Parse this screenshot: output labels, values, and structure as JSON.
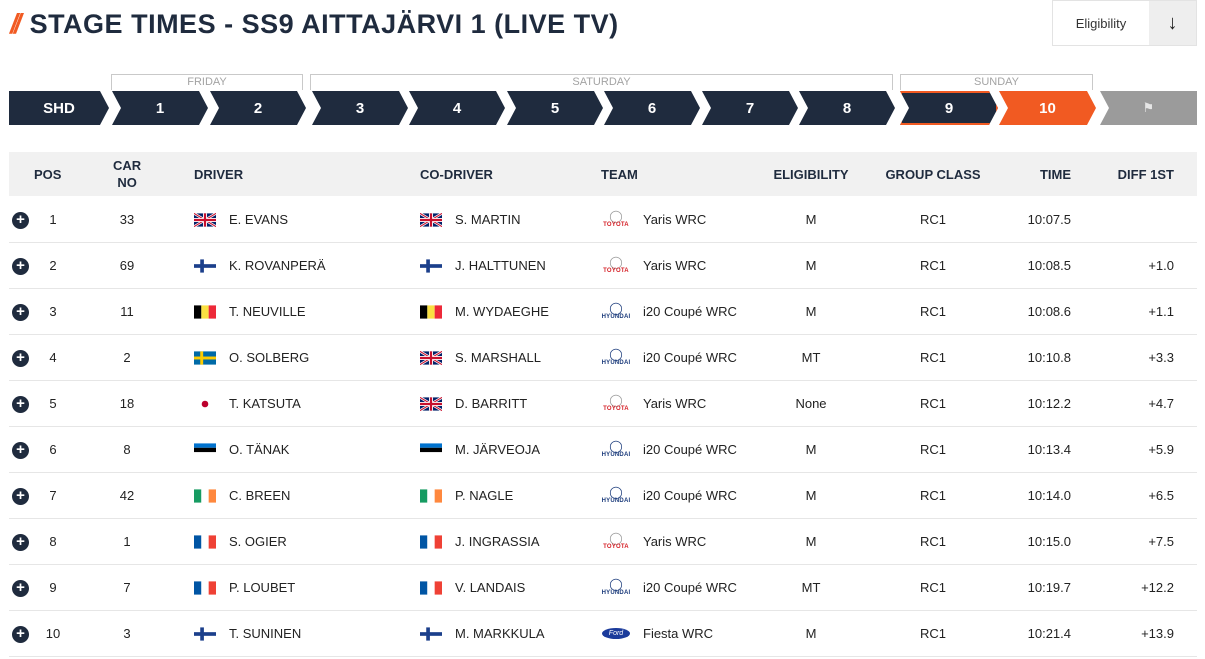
{
  "page": {
    "title": "STAGE TIMES - SS9 AITTAJÄRVI 1 (LIVE TV)",
    "eligibility_label": "Eligibility",
    "download_icon": "arrow-down-icon"
  },
  "days": [
    {
      "label": "FRIDAY"
    },
    {
      "label": "SATURDAY"
    },
    {
      "label": "SUNDAY"
    }
  ],
  "stages": [
    {
      "label": "SHD",
      "state": "done"
    },
    {
      "label": "1",
      "state": "done"
    },
    {
      "label": "2",
      "state": "done"
    },
    {
      "label": "3",
      "state": "done"
    },
    {
      "label": "4",
      "state": "done"
    },
    {
      "label": "5",
      "state": "done"
    },
    {
      "label": "6",
      "state": "done"
    },
    {
      "label": "7",
      "state": "done"
    },
    {
      "label": "8",
      "state": "done"
    },
    {
      "label": "9",
      "state": "selected"
    },
    {
      "label": "10",
      "state": "live"
    },
    {
      "label": "",
      "state": "finish",
      "icon": "chequered-flag-icon"
    }
  ],
  "colors": {
    "navy": "#1f2b3e",
    "orange": "#f15a22",
    "grey": "#9b9b9b"
  },
  "table": {
    "headers": {
      "pos": "POS",
      "car_no": "CAR NO",
      "driver": "DRIVER",
      "co_driver": "CO-DRIVER",
      "team": "TEAM",
      "eligibility": "ELIGIBILITY",
      "group_class": "GROUP CLASS",
      "time": "TIME",
      "diff": "DIFF 1ST"
    },
    "rows": [
      {
        "pos": "1",
        "car": "33",
        "driver": "E. EVANS",
        "driver_flag": "gb",
        "co": "S. MARTIN",
        "co_flag": "gb",
        "brand": "toyota",
        "team": "Yaris WRC",
        "elig": "M",
        "class": "RC1",
        "time": "10:07.5",
        "diff": ""
      },
      {
        "pos": "2",
        "car": "69",
        "driver": "K. ROVANPERÄ",
        "driver_flag": "fi",
        "co": "J. HALTTUNEN",
        "co_flag": "fi",
        "brand": "toyota",
        "team": "Yaris WRC",
        "elig": "M",
        "class": "RC1",
        "time": "10:08.5",
        "diff": "+1.0"
      },
      {
        "pos": "3",
        "car": "11",
        "driver": "T. NEUVILLE",
        "driver_flag": "be",
        "co": "M. WYDAEGHE",
        "co_flag": "be",
        "brand": "hyundai",
        "team": "i20 Coupé WRC",
        "elig": "M",
        "class": "RC1",
        "time": "10:08.6",
        "diff": "+1.1"
      },
      {
        "pos": "4",
        "car": "2",
        "driver": "O. SOLBERG",
        "driver_flag": "se",
        "co": "S. MARSHALL",
        "co_flag": "gb",
        "brand": "hyundai",
        "team": "i20 Coupé WRC",
        "elig": "MT",
        "class": "RC1",
        "time": "10:10.8",
        "diff": "+3.3"
      },
      {
        "pos": "5",
        "car": "18",
        "driver": "T. KATSUTA",
        "driver_flag": "jp",
        "co": "D. BARRITT",
        "co_flag": "gb",
        "brand": "toyota",
        "team": "Yaris WRC",
        "elig": "None",
        "class": "RC1",
        "time": "10:12.2",
        "diff": "+4.7"
      },
      {
        "pos": "6",
        "car": "8",
        "driver": "O. TÄNAK",
        "driver_flag": "ee",
        "co": "M. JÄRVEOJA",
        "co_flag": "ee",
        "brand": "hyundai",
        "team": "i20 Coupé WRC",
        "elig": "M",
        "class": "RC1",
        "time": "10:13.4",
        "diff": "+5.9"
      },
      {
        "pos": "7",
        "car": "42",
        "driver": "C. BREEN",
        "driver_flag": "ie",
        "co": "P. NAGLE",
        "co_flag": "ie",
        "brand": "hyundai",
        "team": "i20 Coupé WRC",
        "elig": "M",
        "class": "RC1",
        "time": "10:14.0",
        "diff": "+6.5"
      },
      {
        "pos": "8",
        "car": "1",
        "driver": "S. OGIER",
        "driver_flag": "fr",
        "co": "J. INGRASSIA",
        "co_flag": "fr",
        "brand": "toyota",
        "team": "Yaris WRC",
        "elig": "M",
        "class": "RC1",
        "time": "10:15.0",
        "diff": "+7.5"
      },
      {
        "pos": "9",
        "car": "7",
        "driver": "P. LOUBET",
        "driver_flag": "fr",
        "co": "V. LANDAIS",
        "co_flag": "fr",
        "brand": "hyundai",
        "team": "i20 Coupé WRC",
        "elig": "MT",
        "class": "RC1",
        "time": "10:19.7",
        "diff": "+12.2"
      },
      {
        "pos": "10",
        "car": "3",
        "driver": "T. SUNINEN",
        "driver_flag": "fi",
        "co": "M. MARKKULA",
        "co_flag": "fi",
        "brand": "ford",
        "team": "Fiesta WRC",
        "elig": "M",
        "class": "RC1",
        "time": "10:21.4",
        "diff": "+13.9"
      }
    ]
  }
}
